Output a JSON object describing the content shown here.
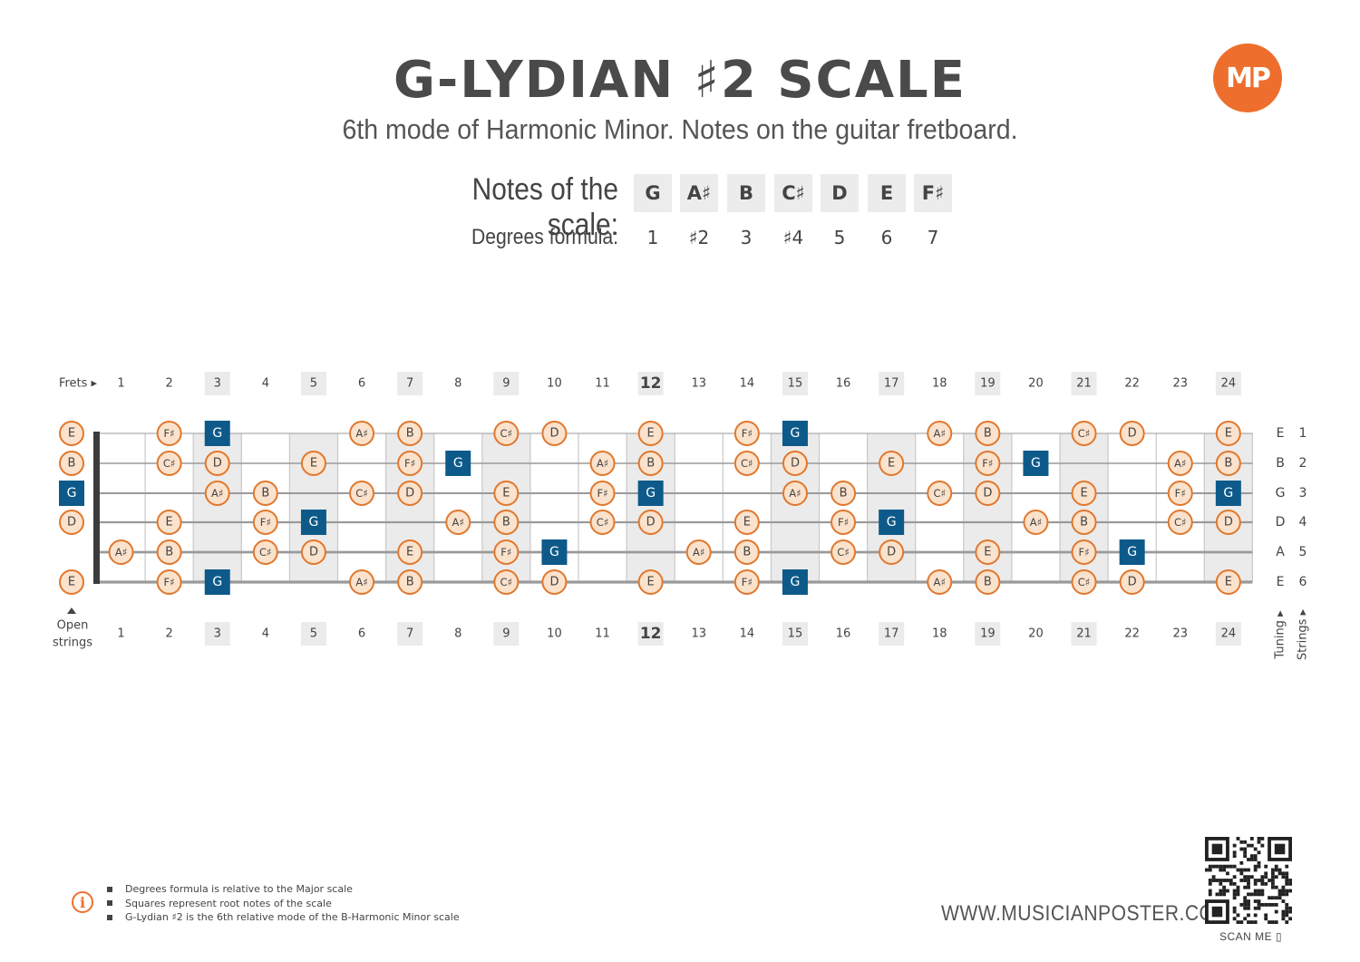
{
  "header": {
    "title": "G-LYDIAN ♯2 SCALE",
    "subtitle": "6th mode of Harmonic Minor. Notes on the guitar fretboard.",
    "logo_text": "MP"
  },
  "scale": {
    "notes_label": "Notes of the scale:",
    "degrees_label": "Degrees formula:",
    "notes": [
      "G",
      "A♯",
      "B",
      "C♯",
      "D",
      "E",
      "F♯"
    ],
    "degrees": [
      "1",
      "♯2",
      "3",
      "♯4",
      "5",
      "6",
      "7"
    ]
  },
  "fretboard": {
    "frets_label": "Frets ▸",
    "open_strings_label": [
      "Open",
      "strings"
    ],
    "tuning_label": "Tuning ▸",
    "strings_label": "Strings ▸",
    "fret_numbers": [
      "1",
      "2",
      "3",
      "4",
      "5",
      "6",
      "7",
      "8",
      "9",
      "10",
      "11",
      "12",
      "13",
      "14",
      "15",
      "16",
      "17",
      "18",
      "19",
      "20",
      "21",
      "22",
      "23",
      "24"
    ],
    "marker_frets": [
      3,
      5,
      7,
      9,
      12,
      15,
      17,
      19,
      21,
      24
    ],
    "bold_fret": 12,
    "root_note": "G",
    "colors": {
      "root": "#0d5a8a",
      "note_border": "#e0782e",
      "note_fill": "#fbe2cc",
      "marker": "#ebebeb"
    },
    "strings": [
      {
        "tuning": "E",
        "number": "1",
        "open": "E",
        "notes": [
          "",
          "F♯",
          "G",
          "",
          "",
          "A♯",
          "B",
          "",
          "C♯",
          "D",
          "",
          "E",
          "",
          "F♯",
          "G",
          "",
          "",
          "A♯",
          "B",
          "",
          "C♯",
          "D",
          "",
          "E"
        ]
      },
      {
        "tuning": "B",
        "number": "2",
        "open": "B",
        "notes": [
          "",
          "C♯",
          "D",
          "",
          "E",
          "",
          "F♯",
          "G",
          "",
          "",
          "A♯",
          "B",
          "",
          "C♯",
          "D",
          "",
          "E",
          "",
          "F♯",
          "G",
          "",
          "",
          "A♯",
          "B"
        ]
      },
      {
        "tuning": "G",
        "number": "3",
        "open": "G",
        "notes": [
          "",
          "",
          "A♯",
          "B",
          "",
          "C♯",
          "D",
          "",
          "E",
          "",
          "F♯",
          "G",
          "",
          "",
          "A♯",
          "B",
          "",
          "C♯",
          "D",
          "",
          "E",
          "",
          "F♯",
          "G"
        ]
      },
      {
        "tuning": "D",
        "number": "4",
        "open": "D",
        "notes": [
          "",
          "E",
          "",
          "F♯",
          "G",
          "",
          "",
          "A♯",
          "B",
          "",
          "C♯",
          "D",
          "",
          "E",
          "",
          "F♯",
          "G",
          "",
          "",
          "A♯",
          "B",
          "",
          "C♯",
          "D"
        ]
      },
      {
        "tuning": "A",
        "number": "5",
        "open": "",
        "notes": [
          "A♯",
          "B",
          "",
          "C♯",
          "D",
          "",
          "E",
          "",
          "F♯",
          "G",
          "",
          "",
          "A♯",
          "B",
          "",
          "C♯",
          "D",
          "",
          "E",
          "",
          "F♯",
          "G",
          "",
          ""
        ]
      },
      {
        "tuning": "E",
        "number": "6",
        "open": "E",
        "notes": [
          "",
          "F♯",
          "G",
          "",
          "",
          "A♯",
          "B",
          "",
          "C♯",
          "D",
          "",
          "E",
          "",
          "F♯",
          "G",
          "",
          "",
          "A♯",
          "B",
          "",
          "C♯",
          "D",
          "",
          "E"
        ]
      }
    ]
  },
  "footer": {
    "notes": [
      "Degrees formula is relative to the Major scale",
      "Squares represent root notes of the scale",
      "G-Lydian ♯2 is the 6th relative mode of the B-Harmonic Minor scale"
    ],
    "info_icon": "i",
    "website": "WWW.MUSICIANPOSTER.COM",
    "scan_label": "SCAN ME"
  }
}
